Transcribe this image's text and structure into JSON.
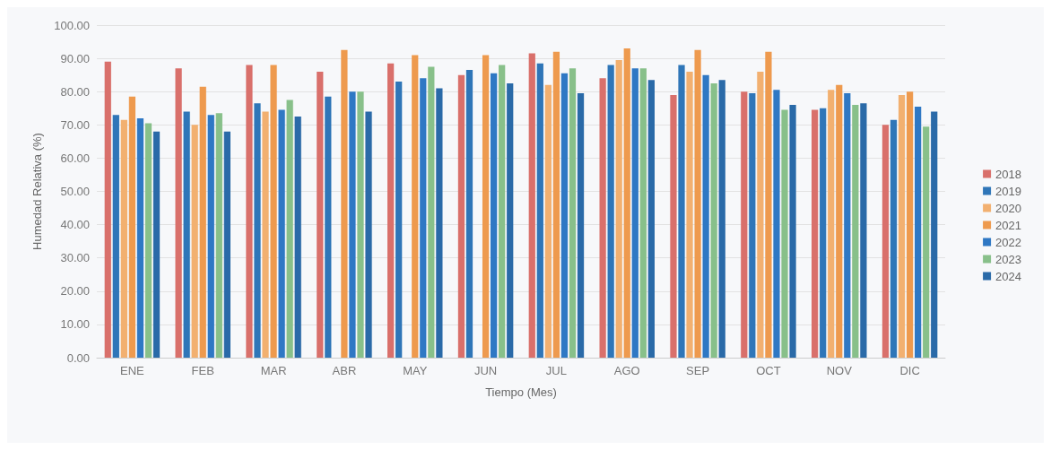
{
  "chart_data": {
    "type": "bar",
    "xlabel": "Tiempo (Mes)",
    "ylabel": "Humedad Relativa (%)",
    "categories": [
      "ENE",
      "FEB",
      "MAR",
      "ABR",
      "MAY",
      "JUN",
      "JUL",
      "AGO",
      "SEP",
      "OCT",
      "NOV",
      "DIC"
    ],
    "series": [
      {
        "name": "2018",
        "color": "#d9706b",
        "values": [
          89,
          87,
          88,
          86,
          88.5,
          85,
          91.5,
          84,
          79,
          80,
          74.5,
          70
        ]
      },
      {
        "name": "2019",
        "color": "#2f76b8",
        "values": [
          73,
          74,
          76.5,
          78.5,
          83,
          86.5,
          88.5,
          88,
          88,
          79.5,
          75,
          71.5
        ]
      },
      {
        "name": "2020",
        "color": "#f2b070",
        "values": [
          71.5,
          70,
          74,
          null,
          null,
          null,
          82,
          89.5,
          86,
          86,
          80.5,
          79
        ]
      },
      {
        "name": "2021",
        "color": "#ee9a4e",
        "values": [
          78.5,
          81.5,
          88,
          92.5,
          91,
          91,
          92,
          93,
          92.5,
          92,
          82,
          80
        ]
      },
      {
        "name": "2022",
        "color": "#2f78c4",
        "values": [
          72,
          73,
          74.5,
          80,
          84,
          85.5,
          85.5,
          87,
          85,
          80.5,
          79.5,
          75.5
        ]
      },
      {
        "name": "2023",
        "color": "#88c08a",
        "values": [
          70.5,
          73.5,
          77.5,
          80,
          87.5,
          88,
          87,
          87,
          82.5,
          74.5,
          76,
          69.5
        ]
      },
      {
        "name": "2024",
        "color": "#2a6aa8",
        "values": [
          68,
          68,
          72.5,
          74,
          81,
          82.5,
          79.5,
          83.5,
          83.5,
          76,
          76.5,
          74
        ]
      }
    ],
    "ylim": [
      0,
      100
    ],
    "yticks": [
      {
        "value": 0,
        "label": "0.00"
      },
      {
        "value": 10,
        "label": "10.00"
      },
      {
        "value": 20,
        "label": "20.00"
      },
      {
        "value": 30,
        "label": "30.00"
      },
      {
        "value": 40,
        "label": "40.00"
      },
      {
        "value": 50,
        "label": "50.00"
      },
      {
        "value": 60,
        "label": "60.00"
      },
      {
        "value": 70,
        "label": "70.00"
      },
      {
        "value": 80,
        "label": "80.00"
      },
      {
        "value": 90,
        "label": "90.00"
      },
      {
        "value": 100,
        "label": "100.00"
      }
    ],
    "grid": "y",
    "legend": "right"
  }
}
